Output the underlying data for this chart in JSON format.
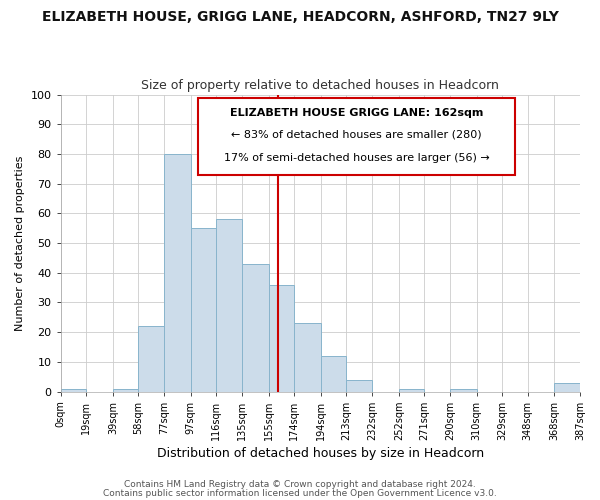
{
  "title": "ELIZABETH HOUSE, GRIGG LANE, HEADCORN, ASHFORD, TN27 9LY",
  "subtitle": "Size of property relative to detached houses in Headcorn",
  "xlabel": "Distribution of detached houses by size in Headcorn",
  "ylabel": "Number of detached properties",
  "footer_line1": "Contains HM Land Registry data © Crown copyright and database right 2024.",
  "footer_line2": "Contains public sector information licensed under the Open Government Licence v3.0.",
  "annotation_title": "ELIZABETH HOUSE GRIGG LANE: 162sqm",
  "annotation_line2": "← 83% of detached houses are smaller (280)",
  "annotation_line3": "17% of semi-detached houses are larger (56) →",
  "property_line_x": 162,
  "bar_edges": [
    0,
    19,
    39,
    58,
    77,
    97,
    116,
    135,
    155,
    174,
    194,
    213,
    232,
    252,
    271,
    290,
    310,
    329,
    348,
    368,
    387
  ],
  "bar_heights": [
    1,
    0,
    1,
    22,
    80,
    55,
    58,
    43,
    36,
    23,
    12,
    4,
    0,
    1,
    0,
    1,
    0,
    0,
    0,
    3
  ],
  "bar_color": "#ccdcea",
  "bar_edge_color": "#88b4cc",
  "property_line_color": "#cc0000",
  "grid_color": "#cccccc",
  "background_color": "#ffffff",
  "annotation_box_color": "#ffffff",
  "annotation_border_color": "#cc0000",
  "ylim": [
    0,
    100
  ],
  "tick_labels": [
    "0sqm",
    "19sqm",
    "39sqm",
    "58sqm",
    "77sqm",
    "97sqm",
    "116sqm",
    "135sqm",
    "155sqm",
    "174sqm",
    "194sqm",
    "213sqm",
    "232sqm",
    "252sqm",
    "271sqm",
    "290sqm",
    "310sqm",
    "329sqm",
    "348sqm",
    "368sqm",
    "387sqm"
  ]
}
